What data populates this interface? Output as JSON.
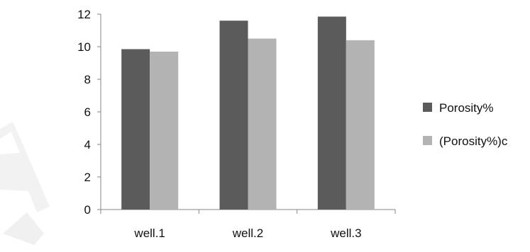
{
  "chart_data": {
    "type": "bar",
    "categories": [
      "well.1",
      "well.2",
      "well.3"
    ],
    "series": [
      {
        "name": "Porosity%",
        "color": "#5b5b5b",
        "values": [
          9.85,
          11.6,
          11.85
        ]
      },
      {
        "name": "(Porosity%)c",
        "color": "#b3b3b3",
        "values": [
          9.7,
          10.5,
          10.4
        ]
      }
    ],
    "yticks": [
      0,
      2,
      4,
      6,
      8,
      10,
      12
    ],
    "ylim": [
      0,
      12
    ],
    "grid": false,
    "legend_position": "right"
  }
}
